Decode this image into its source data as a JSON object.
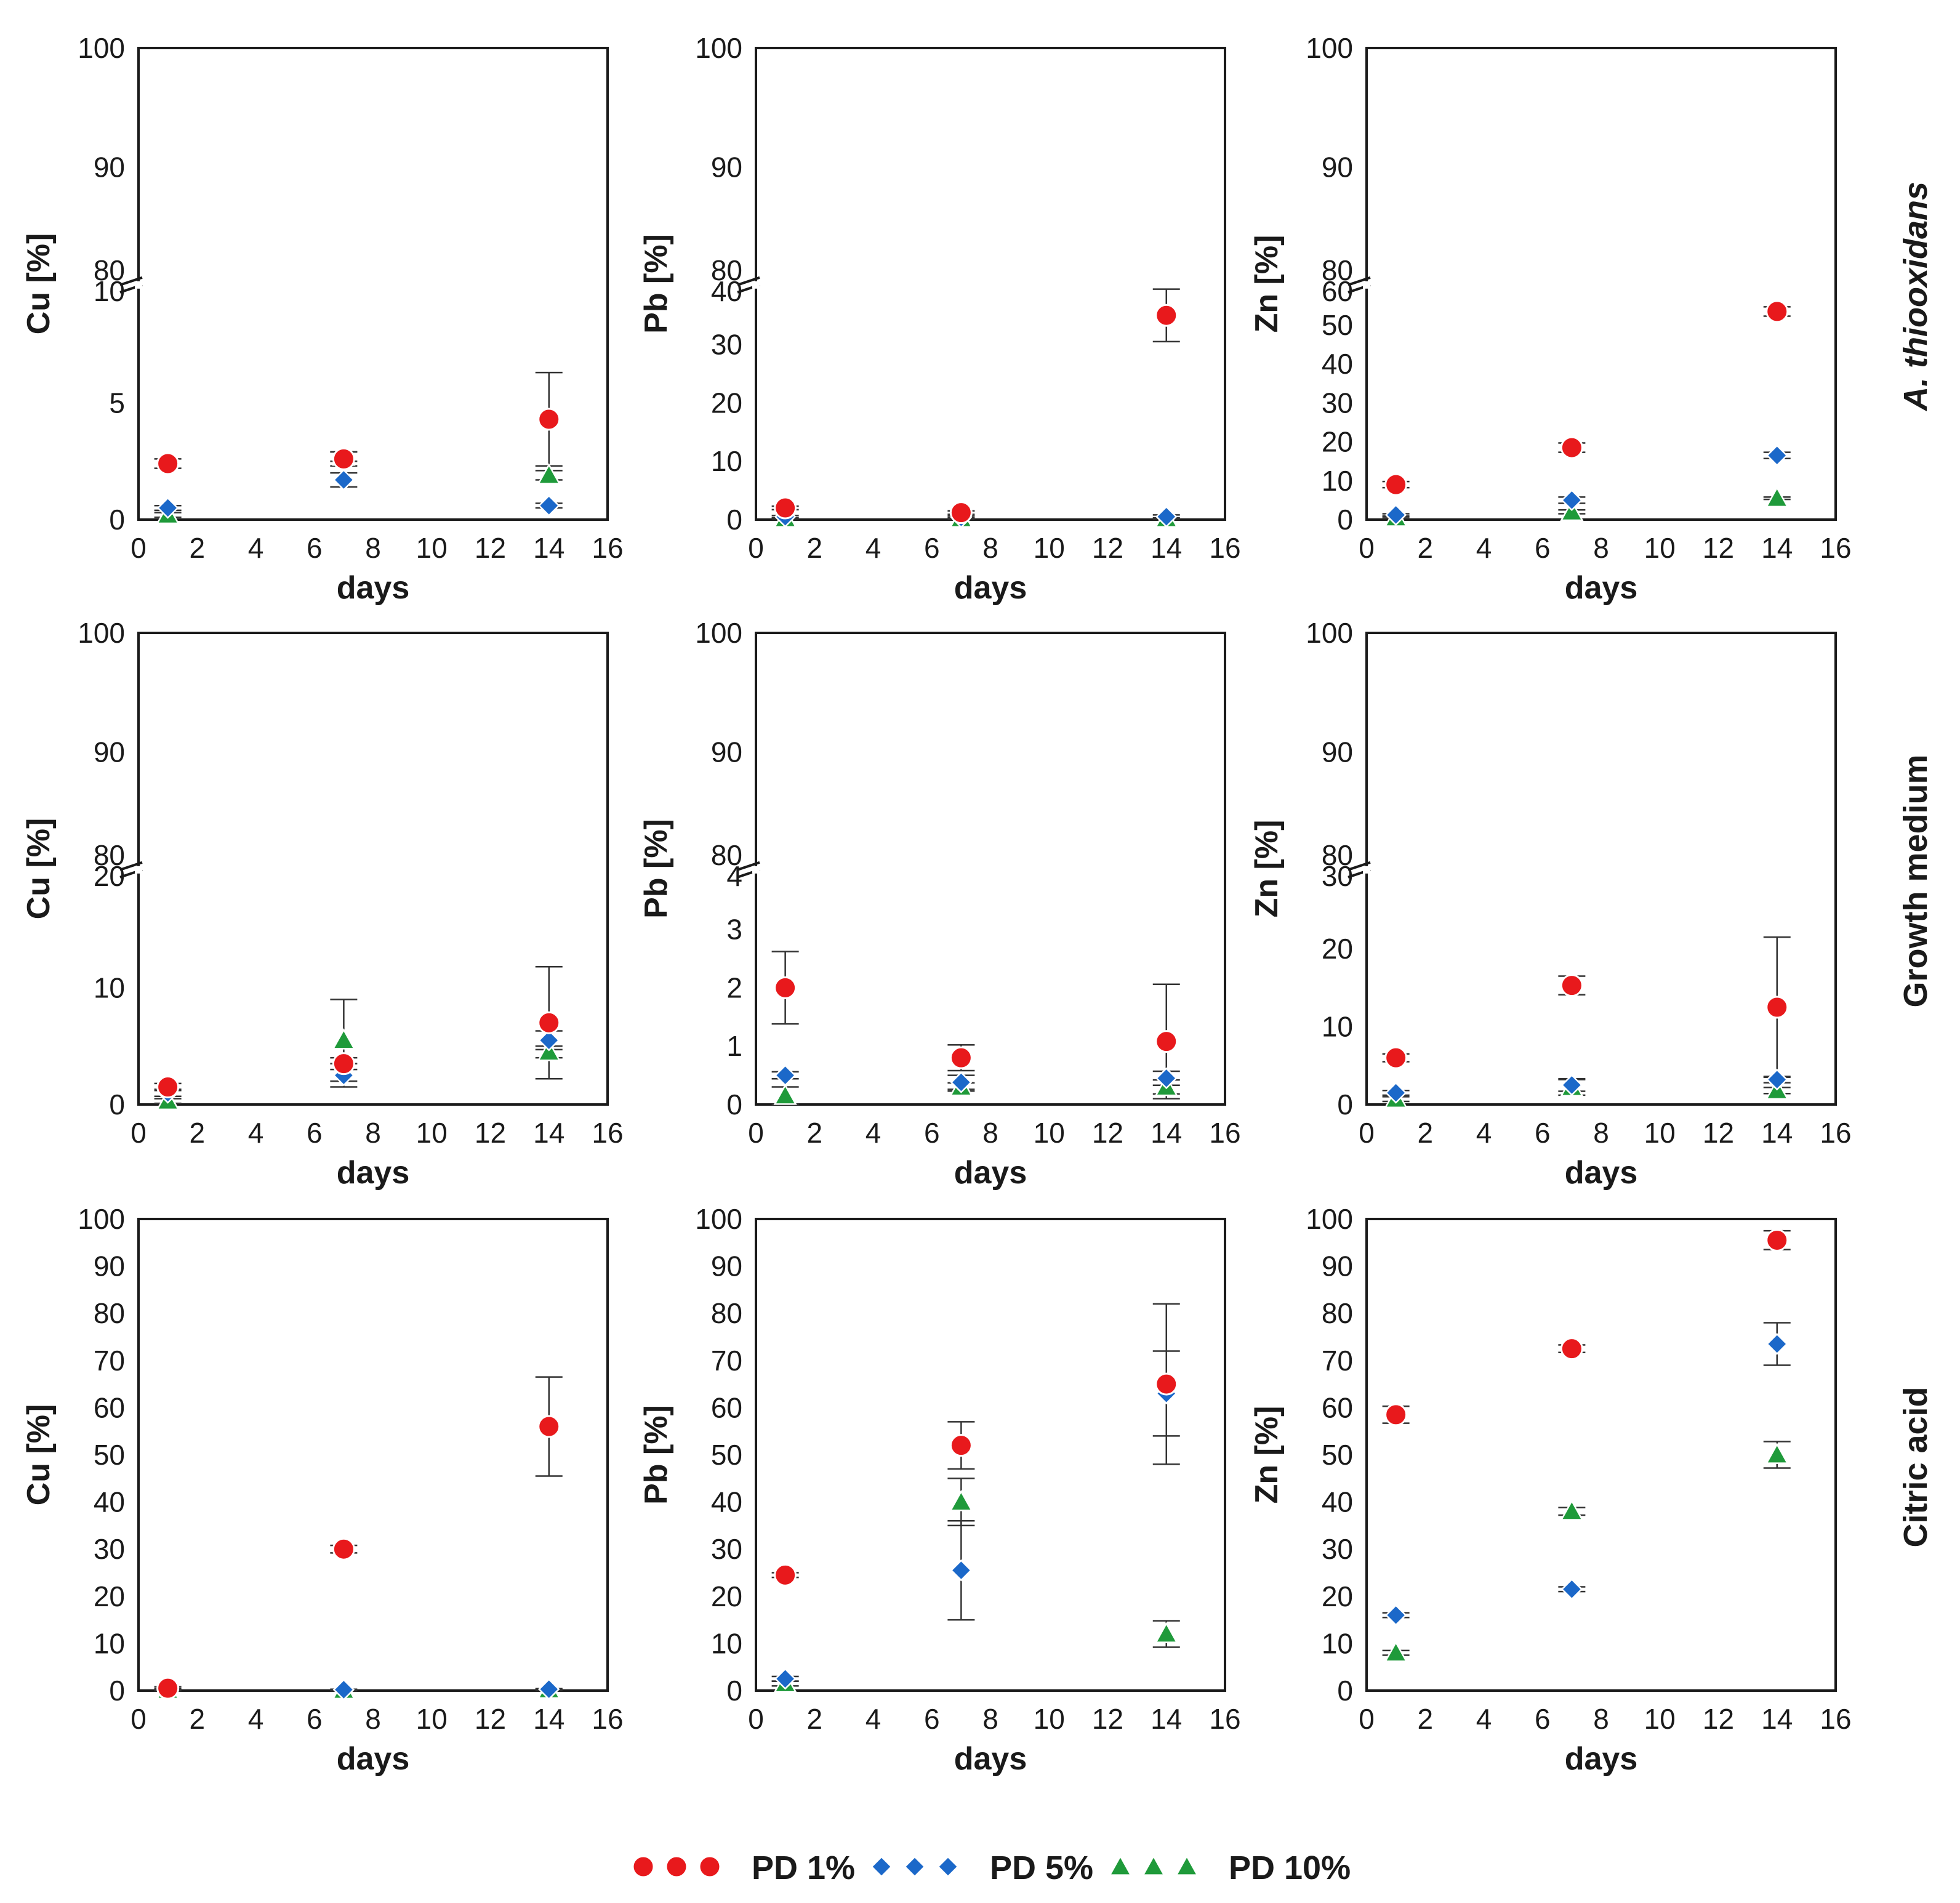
{
  "legend": [
    {
      "key": "pd1",
      "label": "PD 1%",
      "marker": "circle",
      "color": "#e8191c"
    },
    {
      "key": "pd5",
      "label": "PD 5%",
      "marker": "diamond",
      "color": "#1b68c9"
    },
    {
      "key": "pd10",
      "label": "PD 10%",
      "marker": "triangle",
      "color": "#1f9a3a"
    }
  ],
  "row_labels": [
    {
      "text": "A. thiooxidans",
      "italic": true
    },
    {
      "text": "Growth medium",
      "italic": false
    },
    {
      "text": "Citric acid",
      "italic": false
    }
  ],
  "chart_data": [
    {
      "type": "scatter",
      "row": 0,
      "col": 0,
      "xlabel": "days",
      "ylabel": "Cu [%]",
      "xlim": [
        0,
        16
      ],
      "xticks": [
        0,
        2,
        4,
        6,
        8,
        10,
        12,
        14,
        16
      ],
      "broken_axis": true,
      "upper_ylim": [
        80,
        100
      ],
      "upper_ticks": [
        80,
        90,
        100
      ],
      "lower_ylim": [
        0,
        10
      ],
      "lower_ticks": [
        0,
        5,
        10
      ],
      "series": [
        {
          "name": "PD 1%",
          "points": [
            {
              "x": 1,
              "y": 2.4,
              "err": 0.2
            },
            {
              "x": 7,
              "y": 2.6,
              "err": 0.3
            },
            {
              "x": 14,
              "y": 4.3,
              "err": 2.0
            }
          ]
        },
        {
          "name": "PD 5%",
          "points": [
            {
              "x": 1,
              "y": 0.5,
              "err": 0.1
            },
            {
              "x": 7,
              "y": 1.7,
              "err": 0.3
            },
            {
              "x": 14,
              "y": 0.6,
              "err": 0.1
            }
          ]
        },
        {
          "name": "PD 10%",
          "points": [
            {
              "x": 1,
              "y": 0.2,
              "err": 0.1
            },
            {
              "x": 7,
              "y": 2.7,
              "err": 0.2
            },
            {
              "x": 14,
              "y": 1.9,
              "err": 0.2
            }
          ]
        }
      ]
    },
    {
      "type": "scatter",
      "row": 0,
      "col": 1,
      "xlabel": "days",
      "ylabel": "Pb [%]",
      "xlim": [
        0,
        16
      ],
      "xticks": [
        0,
        2,
        4,
        6,
        8,
        10,
        12,
        14,
        16
      ],
      "broken_axis": true,
      "upper_ylim": [
        80,
        100
      ],
      "upper_ticks": [
        80,
        90,
        100
      ],
      "lower_ylim": [
        0,
        40
      ],
      "lower_ticks": [
        0,
        10,
        20,
        30,
        40
      ],
      "series": [
        {
          "name": "PD 1%",
          "points": [
            {
              "x": 1,
              "y": 2.0,
              "err": 0.3
            },
            {
              "x": 7,
              "y": 1.2,
              "err": 0.3
            },
            {
              "x": 14,
              "y": 35,
              "err": 4.5
            }
          ]
        },
        {
          "name": "PD 5%",
          "points": [
            {
              "x": 1,
              "y": 0.5,
              "err": 0.2
            },
            {
              "x": 7,
              "y": 0.4,
              "err": 0.2
            },
            {
              "x": 14,
              "y": 0.5,
              "err": 0.3
            }
          ]
        },
        {
          "name": "PD 10%",
          "points": [
            {
              "x": 1,
              "y": 0.2,
              "err": 0.1
            },
            {
              "x": 7,
              "y": 0.2,
              "err": 0.1
            },
            {
              "x": 14,
              "y": 0.2,
              "err": 0.1
            }
          ]
        }
      ]
    },
    {
      "type": "scatter",
      "row": 0,
      "col": 2,
      "xlabel": "days",
      "ylabel": "Zn [%]",
      "xlim": [
        0,
        16
      ],
      "xticks": [
        0,
        2,
        4,
        6,
        8,
        10,
        12,
        14,
        16
      ],
      "broken_axis": true,
      "upper_ylim": [
        80,
        100
      ],
      "upper_ticks": [
        80,
        90,
        100
      ],
      "lower_ylim": [
        0,
        60
      ],
      "lower_ticks": [
        0,
        10,
        20,
        30,
        40,
        50,
        60
      ],
      "series": [
        {
          "name": "PD 1%",
          "points": [
            {
              "x": 1,
              "y": 9.0,
              "err": 0.8
            },
            {
              "x": 7,
              "y": 18.5,
              "err": 1.2
            },
            {
              "x": 14,
              "y": 53.5,
              "err": 1.2
            }
          ]
        },
        {
          "name": "PD 5%",
          "points": [
            {
              "x": 1,
              "y": 1.2,
              "err": 0.3
            },
            {
              "x": 7,
              "y": 5.0,
              "err": 0.8
            },
            {
              "x": 14,
              "y": 16.5,
              "err": 0.8
            }
          ]
        },
        {
          "name": "PD 10%",
          "points": [
            {
              "x": 1,
              "y": 0.5,
              "err": 0.2
            },
            {
              "x": 7,
              "y": 2.0,
              "err": 0.5
            },
            {
              "x": 14,
              "y": 5.5,
              "err": 0.3
            }
          ]
        }
      ]
    },
    {
      "type": "scatter",
      "row": 1,
      "col": 0,
      "xlabel": "days",
      "ylabel": "Cu [%]",
      "xlim": [
        0,
        16
      ],
      "xticks": [
        0,
        2,
        4,
        6,
        8,
        10,
        12,
        14,
        16
      ],
      "broken_axis": true,
      "upper_ylim": [
        80,
        100
      ],
      "upper_ticks": [
        80,
        90,
        100
      ],
      "lower_ylim": [
        0,
        20
      ],
      "lower_ticks": [
        0,
        10,
        20
      ],
      "series": [
        {
          "name": "PD 1%",
          "points": [
            {
              "x": 1,
              "y": 1.5,
              "err": 0.3
            },
            {
              "x": 7,
              "y": 3.5,
              "err": 0.5
            },
            {
              "x": 14,
              "y": 7.0,
              "err": 4.8
            }
          ]
        },
        {
          "name": "PD 5%",
          "points": [
            {
              "x": 1,
              "y": 1.0,
              "err": 0.3
            },
            {
              "x": 7,
              "y": 2.5,
              "err": 1.0
            },
            {
              "x": 14,
              "y": 5.5,
              "err": 0.8
            }
          ]
        },
        {
          "name": "PD 10%",
          "points": [
            {
              "x": 1,
              "y": 0.3,
              "err": 0.2
            },
            {
              "x": 7,
              "y": 5.5,
              "err": 3.5
            },
            {
              "x": 14,
              "y": 4.5,
              "err": 0.5
            }
          ]
        }
      ]
    },
    {
      "type": "scatter",
      "row": 1,
      "col": 1,
      "xlabel": "days",
      "ylabel": "Pb [%]",
      "xlim": [
        0,
        16
      ],
      "xticks": [
        0,
        2,
        4,
        6,
        8,
        10,
        12,
        14,
        16
      ],
      "broken_axis": true,
      "upper_ylim": [
        80,
        100
      ],
      "upper_ticks": [
        80,
        90,
        100
      ],
      "lower_ylim": [
        0,
        4
      ],
      "lower_ticks": [
        0,
        1,
        2,
        3,
        4
      ],
      "series": [
        {
          "name": "PD 1%",
          "points": [
            {
              "x": 1,
              "y": 2.0,
              "err": 0.62
            },
            {
              "x": 7,
              "y": 0.8,
              "err": 0.22
            },
            {
              "x": 14,
              "y": 1.08,
              "err": 0.98
            }
          ]
        },
        {
          "name": "PD 5%",
          "points": [
            {
              "x": 1,
              "y": 0.5,
              "err": 0.06
            },
            {
              "x": 7,
              "y": 0.38,
              "err": 0.12
            },
            {
              "x": 14,
              "y": 0.45,
              "err": 0.12
            }
          ]
        },
        {
          "name": "PD 10%",
          "points": [
            {
              "x": 1,
              "y": 0.15,
              "err": 0.15
            },
            {
              "x": 7,
              "y": 0.3,
              "err": 0.07
            },
            {
              "x": 14,
              "y": 0.3,
              "err": 0.12
            }
          ]
        }
      ]
    },
    {
      "type": "scatter",
      "row": 1,
      "col": 2,
      "xlabel": "days",
      "ylabel": "Zn [%]",
      "xlim": [
        0,
        16
      ],
      "xticks": [
        0,
        2,
        4,
        6,
        8,
        10,
        12,
        14,
        16
      ],
      "broken_axis": true,
      "upper_ylim": [
        80,
        100
      ],
      "upper_ticks": [
        80,
        90,
        100
      ],
      "lower_ylim": [
        0,
        30
      ],
      "lower_ticks": [
        0,
        10,
        20,
        30
      ],
      "series": [
        {
          "name": "PD 1%",
          "points": [
            {
              "x": 1,
              "y": 6.0,
              "err": 0.5
            },
            {
              "x": 7,
              "y": 15.3,
              "err": 1.2
            },
            {
              "x": 14,
              "y": 12.5,
              "err": 9.0
            }
          ]
        },
        {
          "name": "PD 5%",
          "points": [
            {
              "x": 1,
              "y": 1.5,
              "err": 0.3
            },
            {
              "x": 7,
              "y": 2.5,
              "err": 0.8
            },
            {
              "x": 14,
              "y": 3.2,
              "err": 0.4
            }
          ]
        },
        {
          "name": "PD 10%",
          "points": [
            {
              "x": 1,
              "y": 0.7,
              "err": 0.3
            },
            {
              "x": 7,
              "y": 2.2,
              "err": 1.0
            },
            {
              "x": 14,
              "y": 1.8,
              "err": 0.4
            }
          ]
        }
      ]
    },
    {
      "type": "scatter",
      "row": 2,
      "col": 0,
      "xlabel": "days",
      "ylabel": "Cu [%]",
      "xlim": [
        0,
        16
      ],
      "xticks": [
        0,
        2,
        4,
        6,
        8,
        10,
        12,
        14,
        16
      ],
      "broken_axis": false,
      "ylim": [
        0,
        100
      ],
      "yticks": [
        0,
        10,
        20,
        30,
        40,
        50,
        60,
        70,
        80,
        90,
        100
      ],
      "series": [
        {
          "name": "PD 1%",
          "points": [
            {
              "x": 1,
              "y": 0.5,
              "err": 0.3
            },
            {
              "x": 7,
              "y": 30.0,
              "err": 0.8
            },
            {
              "x": 14,
              "y": 56.0,
              "err": 10.5
            }
          ]
        },
        {
          "name": "PD 5%",
          "points": [
            {
              "x": 1,
              "y": 0.3,
              "err": 0.1
            },
            {
              "x": 7,
              "y": 0.2,
              "err": 0.1
            },
            {
              "x": 14,
              "y": 0.3,
              "err": 0.1
            }
          ]
        },
        {
          "name": "PD 10%",
          "points": [
            {
              "x": 1,
              "y": 0.1,
              "err": 0.1
            },
            {
              "x": 7,
              "y": 0.1,
              "err": 0.1
            },
            {
              "x": 14,
              "y": 0.2,
              "err": 0.1
            }
          ]
        }
      ]
    },
    {
      "type": "scatter",
      "row": 2,
      "col": 1,
      "xlabel": "days",
      "ylabel": "Pb [%]",
      "xlim": [
        0,
        16
      ],
      "xticks": [
        0,
        2,
        4,
        6,
        8,
        10,
        12,
        14,
        16
      ],
      "broken_axis": false,
      "ylim": [
        0,
        100
      ],
      "yticks": [
        0,
        10,
        20,
        30,
        40,
        50,
        60,
        70,
        80,
        90,
        100
      ],
      "series": [
        {
          "name": "PD 1%",
          "points": [
            {
              "x": 1,
              "y": 24.5,
              "err": 0.5
            },
            {
              "x": 7,
              "y": 52.0,
              "err": 5.0
            },
            {
              "x": 14,
              "y": 65.0,
              "err": 17.0
            }
          ]
        },
        {
          "name": "PD 5%",
          "points": [
            {
              "x": 1,
              "y": 2.5,
              "err": 0.5
            },
            {
              "x": 7,
              "y": 25.5,
              "err": 10.5
            },
            {
              "x": 14,
              "y": 63.0,
              "err": 9.0
            }
          ]
        },
        {
          "name": "PD 10%",
          "points": [
            {
              "x": 1,
              "y": 1.5,
              "err": 0.5
            },
            {
              "x": 7,
              "y": 40.0,
              "err": 5.0
            },
            {
              "x": 14,
              "y": 12.0,
              "err": 2.8
            }
          ]
        }
      ]
    },
    {
      "type": "scatter",
      "row": 2,
      "col": 2,
      "xlabel": "days",
      "ylabel": "Zn [%]",
      "xlim": [
        0,
        16
      ],
      "xticks": [
        0,
        2,
        4,
        6,
        8,
        10,
        12,
        14,
        16
      ],
      "broken_axis": false,
      "ylim": [
        0,
        100
      ],
      "yticks": [
        0,
        10,
        20,
        30,
        40,
        50,
        60,
        70,
        80,
        90,
        100
      ],
      "series": [
        {
          "name": "PD 1%",
          "points": [
            {
              "x": 1,
              "y": 58.5,
              "err": 1.8
            },
            {
              "x": 7,
              "y": 72.5,
              "err": 0.8
            },
            {
              "x": 14,
              "y": 95.5,
              "err": 2.0
            }
          ]
        },
        {
          "name": "PD 5%",
          "points": [
            {
              "x": 1,
              "y": 16.0,
              "err": 0.5
            },
            {
              "x": 7,
              "y": 21.5,
              "err": 0.5
            },
            {
              "x": 14,
              "y": 73.5,
              "err": 4.5
            }
          ]
        },
        {
          "name": "PD 10%",
          "points": [
            {
              "x": 1,
              "y": 8.0,
              "err": 0.5
            },
            {
              "x": 7,
              "y": 38.0,
              "err": 0.8
            },
            {
              "x": 14,
              "y": 50.0,
              "err": 2.8
            }
          ]
        }
      ]
    }
  ]
}
